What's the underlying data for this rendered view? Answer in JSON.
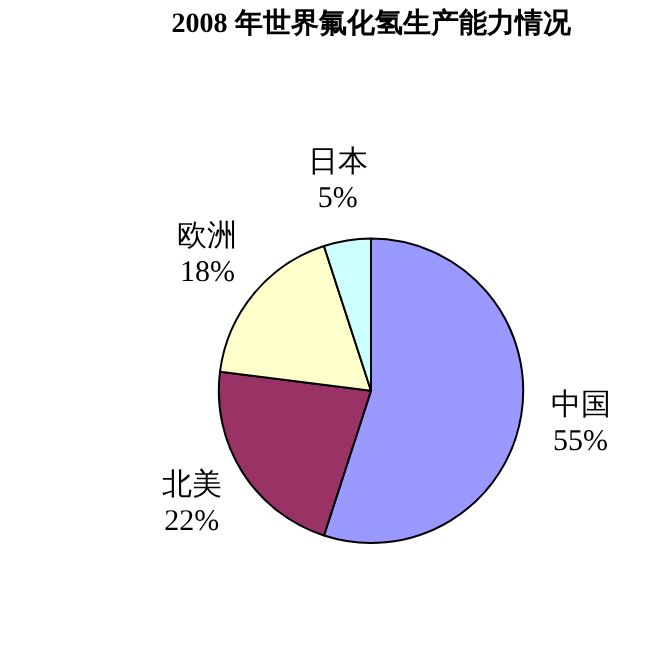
{
  "chart_data": {
    "type": "pie",
    "title": "2008 年世界氟化氢生产能力情况",
    "categories": [
      "中国",
      "北美",
      "欧洲",
      "日本"
    ],
    "values": [
      55,
      22,
      18,
      5
    ],
    "value_labels": [
      "55%",
      "22%",
      "18%",
      "5%"
    ],
    "colors": [
      "#9999ff",
      "#993366",
      "#ffffcc",
      "#ccffff"
    ],
    "legend": false
  }
}
